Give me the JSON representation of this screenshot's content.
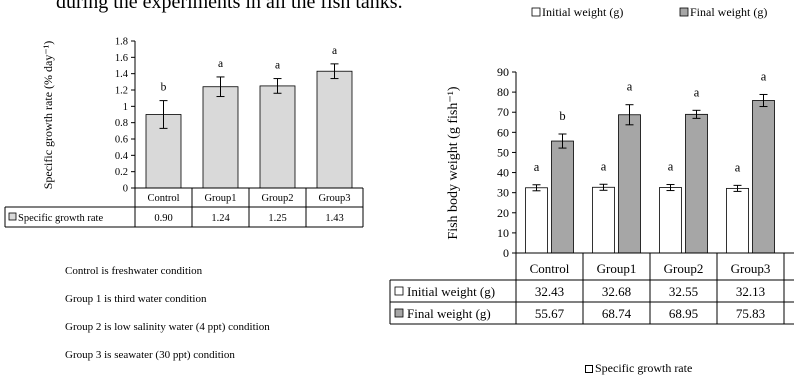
{
  "header": {
    "text": "during the experiments in all the fish tanks."
  },
  "notes": [
    "Control is freshwater condition",
    "Group 1 is third water condition",
    "Group 2 is low salinity water (4 ppt) condition",
    "Group 3 is seawater (30 ppt) condition"
  ],
  "bottom_legend": "Specific growth rate",
  "colors": {
    "sgr_bar": "#d9d9d9",
    "initial_bar": "#ffffff",
    "final_bar": "#a6a6a6",
    "axis": "#000000"
  },
  "chart_data": [
    {
      "type": "bar",
      "categories": [
        "Control",
        "Group1",
        "Group2",
        "Group3"
      ],
      "series": [
        {
          "name": "Specific growth rate",
          "values": [
            0.9,
            1.24,
            1.25,
            1.43
          ],
          "errors": [
            0.17,
            0.12,
            0.09,
            0.09
          ],
          "letters": [
            "b",
            "a",
            "a",
            "a"
          ]
        }
      ],
      "value_labels": [
        "0.90",
        "1.24",
        "1.25",
        "1.43"
      ],
      "ylabel": "Specific growth rate (% day⁻¹)",
      "ylim": [
        0,
        1.8
      ],
      "yticks": [
        "0",
        "0.2",
        "0.4",
        "0.6",
        "0.8",
        "1",
        "1.2",
        "1.4",
        "1.6",
        "1.8"
      ],
      "data_table": true,
      "grid": false
    },
    {
      "type": "bar",
      "categories": [
        "Control",
        "Group1",
        "Group2",
        "Group3"
      ],
      "series": [
        {
          "name": "Initial weight (g)",
          "values": [
            32.43,
            32.68,
            32.55,
            32.13
          ],
          "errors": [
            1.5,
            1.5,
            1.5,
            1.5
          ],
          "letters": [
            "a",
            "a",
            "a",
            "a"
          ]
        },
        {
          "name": "Final weight (g)",
          "values": [
            55.67,
            68.74,
            68.95,
            75.83
          ],
          "errors": [
            3.5,
            5.0,
            2.0,
            3.0
          ],
          "letters": [
            "b",
            "a",
            "a",
            "a"
          ]
        }
      ],
      "value_labels": [
        [
          "32.43",
          "32.68",
          "32.55",
          "32.13"
        ],
        [
          "55.67",
          "68.74",
          "68.95",
          "75.83"
        ]
      ],
      "ylabel": "Fish body weight (g fish⁻¹)",
      "ylim": [
        0,
        90
      ],
      "yticks": [
        "0",
        "10",
        "20",
        "30",
        "40",
        "50",
        "60",
        "70",
        "80",
        "90"
      ],
      "legend": [
        "Initial weight (g)",
        "Final weight (g)"
      ],
      "legend_position": "top-right",
      "data_table": true,
      "grid": false
    }
  ]
}
